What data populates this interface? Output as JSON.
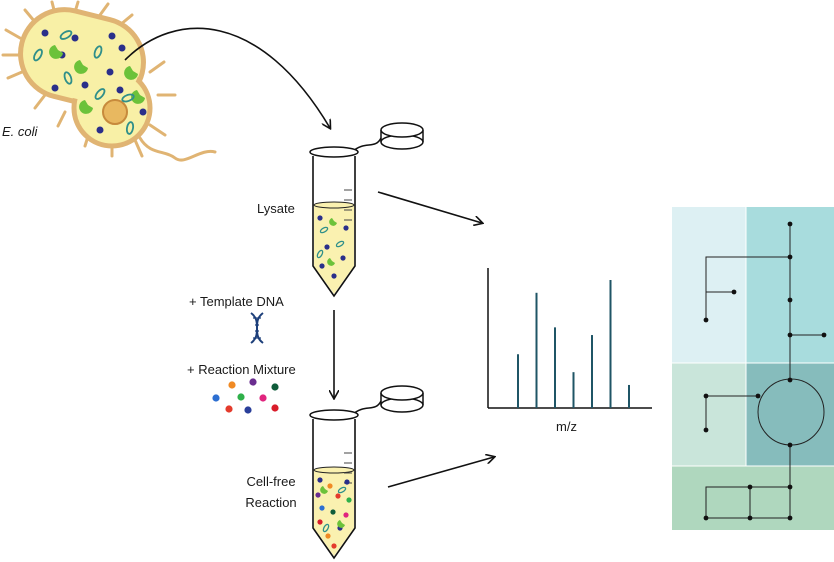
{
  "labels": {
    "organism": "E. coli",
    "lysate": "Lysate",
    "template_dna": "+ Template DNA",
    "reaction_mixture": "+ Reaction Mixture",
    "cellfree_line1": "Cell-free",
    "cellfree_line2": "Reaction",
    "spectrum_xlabel": "m/z"
  },
  "spectrum": {
    "type": "bar",
    "peaks_relative_height": [
      0.42,
      0.9,
      0.63,
      0.28,
      0.57,
      1.0,
      0.18
    ],
    "color": "#1f5566"
  },
  "colors": {
    "cell_fill": "#f8f0a6",
    "cell_outline": "#e0b473",
    "nucleoid": "#e8b860",
    "dot_blue": "#2a2f8a",
    "crescent_green": "#6cc23a",
    "ring_teal": "#2f8f8a",
    "liquid": "#faf1b0",
    "arrow": "#111111",
    "dna_blue": "#1d3f7a",
    "pathway_tl": "#ddf0f3",
    "pathway_tr": "#a8dcdd",
    "pathway_ml": "#c9e5da",
    "pathway_mr": "#86bcbc",
    "pathway_bottom": "#afd7be"
  },
  "icons": {
    "cell": "e-coli-cell-icon",
    "tube": "microcentrifuge-tube-icon",
    "dna": "dna-helix-icon",
    "mixture": "reagent-dots-icon",
    "pathway": "metabolic-network-icon"
  }
}
